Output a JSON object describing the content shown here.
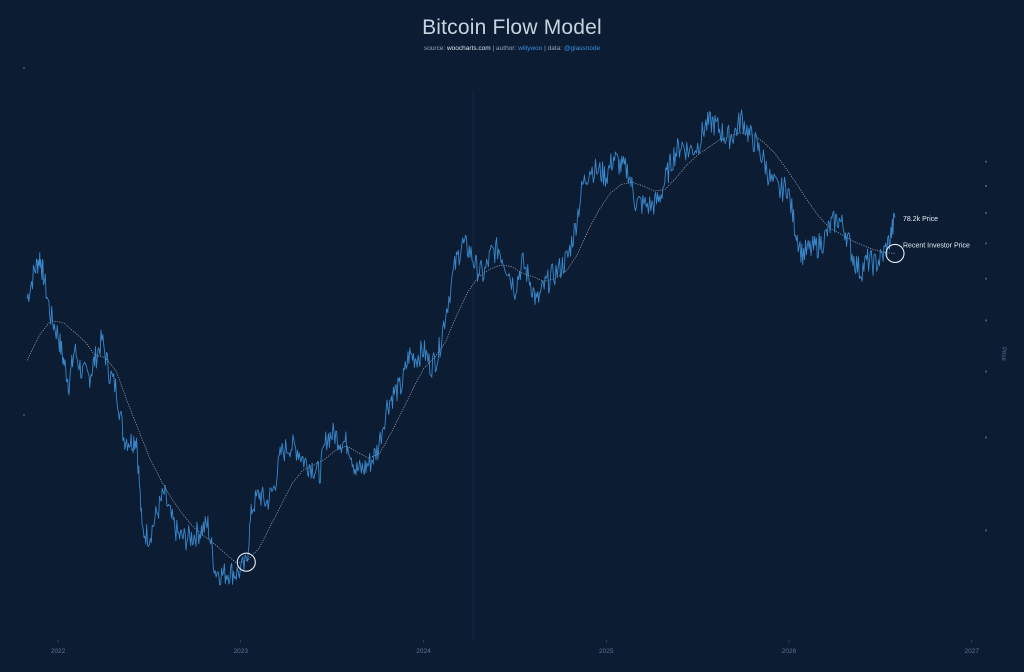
{
  "colors": {
    "background": "#0b1c33",
    "price_line": "#3a86c8",
    "investor_line": "#9fb0c4",
    "title": "#c9d3e0",
    "link": "#3f8ee0",
    "annotation": "#e6edf5",
    "axis_text": "#5a7594"
  },
  "header": {
    "title": "Bitcoin Flow Model",
    "source_label": "source:",
    "source_value": "woocharts.com",
    "sep1": "|",
    "author_label": "author:",
    "author_value": "willywoo",
    "sep2": "|",
    "data_label": "data:",
    "data_value": "@glassnode"
  },
  "chart_data": {
    "type": "line",
    "title": "Bitcoin Flow Model",
    "ylabel": "Price",
    "y_scale": "log",
    "x_ticks": [
      "2022",
      "2023",
      "2024",
      "2025",
      "2026",
      "2027"
    ],
    "x_range": [
      2021.83,
      2027.16
    ],
    "ylim": [
      14000,
      135000
    ],
    "grid": false,
    "series": [
      {
        "name": "Price",
        "values": [
          [
            2021.83,
            55000
          ],
          [
            2021.87,
            62000
          ],
          [
            2021.9,
            66000
          ],
          [
            2021.92,
            61000
          ],
          [
            2021.96,
            51000
          ],
          [
            2022.0,
            47000
          ],
          [
            2022.03,
            42000
          ],
          [
            2022.06,
            38000
          ],
          [
            2022.09,
            44000
          ],
          [
            2022.13,
            40000
          ],
          [
            2022.17,
            39000
          ],
          [
            2022.2,
            42000
          ],
          [
            2022.24,
            46000
          ],
          [
            2022.28,
            40000
          ],
          [
            2022.32,
            37000
          ],
          [
            2022.36,
            30000
          ],
          [
            2022.4,
            29500
          ],
          [
            2022.43,
            30000
          ],
          [
            2022.46,
            20000
          ],
          [
            2022.5,
            19500
          ],
          [
            2022.54,
            21500
          ],
          [
            2022.58,
            23500
          ],
          [
            2022.62,
            21000
          ],
          [
            2022.66,
            19500
          ],
          [
            2022.7,
            19300
          ],
          [
            2022.74,
            19500
          ],
          [
            2022.78,
            20000
          ],
          [
            2022.82,
            20500
          ],
          [
            2022.86,
            16800
          ],
          [
            2022.9,
            16500
          ],
          [
            2022.94,
            16700
          ],
          [
            2022.98,
            16600
          ],
          [
            2023.03,
            17200
          ],
          [
            2023.06,
            22000
          ],
          [
            2023.1,
            23500
          ],
          [
            2023.14,
            22500
          ],
          [
            2023.18,
            24000
          ],
          [
            2023.22,
            28000
          ],
          [
            2023.27,
            29000
          ],
          [
            2023.31,
            28500
          ],
          [
            2023.35,
            27000
          ],
          [
            2023.39,
            26500
          ],
          [
            2023.43,
            25500
          ],
          [
            2023.47,
            30000
          ],
          [
            2023.51,
            30500
          ],
          [
            2023.55,
            29500
          ],
          [
            2023.59,
            29200
          ],
          [
            2023.63,
            26000
          ],
          [
            2023.67,
            26100
          ],
          [
            2023.71,
            27000
          ],
          [
            2023.75,
            28500
          ],
          [
            2023.8,
            34500
          ],
          [
            2023.84,
            36500
          ],
          [
            2023.88,
            37500
          ],
          [
            2023.92,
            43000
          ],
          [
            2023.96,
            42500
          ],
          [
            2024.0,
            44000
          ],
          [
            2024.04,
            41000
          ],
          [
            2024.08,
            43000
          ],
          [
            2024.12,
            51500
          ],
          [
            2024.17,
            63000
          ],
          [
            2024.21,
            70000
          ],
          [
            2024.25,
            68000
          ],
          [
            2024.29,
            63000
          ],
          [
            2024.33,
            61000
          ],
          [
            2024.37,
            67000
          ],
          [
            2024.41,
            68500
          ],
          [
            2024.45,
            64000
          ],
          [
            2024.5,
            57500
          ],
          [
            2024.54,
            64500
          ],
          [
            2024.58,
            60000
          ],
          [
            2024.62,
            54000
          ],
          [
            2024.66,
            58000
          ],
          [
            2024.7,
            60500
          ],
          [
            2024.75,
            63000
          ],
          [
            2024.79,
            66000
          ],
          [
            2024.83,
            75000
          ],
          [
            2024.87,
            90000
          ],
          [
            2024.91,
            97000
          ],
          [
            2024.96,
            96000
          ],
          [
            2025.0,
            94000
          ],
          [
            2025.04,
            102000
          ],
          [
            2025.08,
            98000
          ],
          [
            2025.12,
            96000
          ],
          [
            2025.16,
            84000
          ],
          [
            2025.2,
            83000
          ],
          [
            2025.25,
            82500
          ],
          [
            2025.29,
            85000
          ],
          [
            2025.33,
            94000
          ],
          [
            2025.37,
            103000
          ],
          [
            2025.41,
            108000
          ],
          [
            2025.45,
            105000
          ],
          [
            2025.5,
            107000
          ],
          [
            2025.54,
            117000
          ],
          [
            2025.58,
            119000
          ],
          [
            2025.62,
            115000
          ],
          [
            2025.66,
            111000
          ],
          [
            2025.7,
            113000
          ],
          [
            2025.74,
            121000
          ],
          [
            2025.78,
            113000
          ],
          [
            2025.82,
            108000
          ],
          [
            2025.86,
            101000
          ],
          [
            2025.9,
            92000
          ],
          [
            2025.95,
            88000
          ],
          [
            2025.99,
            90000
          ],
          [
            2026.03,
            76000
          ],
          [
            2026.07,
            67000
          ],
          [
            2026.11,
            68000
          ],
          [
            2026.15,
            69000
          ],
          [
            2026.19,
            71000
          ],
          [
            2026.23,
            76000
          ],
          [
            2026.27,
            78000
          ],
          [
            2026.31,
            74000
          ],
          [
            2026.35,
            66000
          ],
          [
            2026.39,
            62000
          ],
          [
            2026.43,
            65000
          ],
          [
            2026.47,
            64000
          ],
          [
            2026.51,
            66000
          ],
          [
            2026.55,
            71000
          ],
          [
            2026.58,
            78200
          ]
        ]
      },
      {
        "name": "Recent Investor Price",
        "values": [
          [
            2021.83,
            42000
          ],
          [
            2021.9,
            47000
          ],
          [
            2021.96,
            50000
          ],
          [
            2022.03,
            49500
          ],
          [
            2022.09,
            47500
          ],
          [
            2022.15,
            45500
          ],
          [
            2022.2,
            43000
          ],
          [
            2022.26,
            42500
          ],
          [
            2022.32,
            40000
          ],
          [
            2022.38,
            35000
          ],
          [
            2022.44,
            31000
          ],
          [
            2022.5,
            27500
          ],
          [
            2022.56,
            25000
          ],
          [
            2022.62,
            23000
          ],
          [
            2022.68,
            21500
          ],
          [
            2022.74,
            20300
          ],
          [
            2022.8,
            19500
          ],
          [
            2022.86,
            18800
          ],
          [
            2022.92,
            18000
          ],
          [
            2022.98,
            17300
          ],
          [
            2023.04,
            17600
          ],
          [
            2023.1,
            18500
          ],
          [
            2023.16,
            20300
          ],
          [
            2023.22,
            22300
          ],
          [
            2023.28,
            24500
          ],
          [
            2023.34,
            26000
          ],
          [
            2023.4,
            26600
          ],
          [
            2023.46,
            27300
          ],
          [
            2023.52,
            28400
          ],
          [
            2023.58,
            28900
          ],
          [
            2023.64,
            28100
          ],
          [
            2023.7,
            27400
          ],
          [
            2023.76,
            28000
          ],
          [
            2023.82,
            30500
          ],
          [
            2023.88,
            33500
          ],
          [
            2023.94,
            37000
          ],
          [
            2024.0,
            40500
          ],
          [
            2024.06,
            42500
          ],
          [
            2024.12,
            45500
          ],
          [
            2024.18,
            51000
          ],
          [
            2024.24,
            56500
          ],
          [
            2024.3,
            60500
          ],
          [
            2024.36,
            62500
          ],
          [
            2024.42,
            63700
          ],
          [
            2024.48,
            63300
          ],
          [
            2024.54,
            61500
          ],
          [
            2024.6,
            60500
          ],
          [
            2024.66,
            59300
          ],
          [
            2024.72,
            60000
          ],
          [
            2024.78,
            62000
          ],
          [
            2024.84,
            66500
          ],
          [
            2024.9,
            74000
          ],
          [
            2024.96,
            81000
          ],
          [
            2025.02,
            87000
          ],
          [
            2025.08,
            90500
          ],
          [
            2025.14,
            91500
          ],
          [
            2025.2,
            90000
          ],
          [
            2025.26,
            88000
          ],
          [
            2025.32,
            88500
          ],
          [
            2025.38,
            93000
          ],
          [
            2025.44,
            98500
          ],
          [
            2025.5,
            103000
          ],
          [
            2025.56,
            106500
          ],
          [
            2025.62,
            110000
          ],
          [
            2025.68,
            112000
          ],
          [
            2025.74,
            113500
          ],
          [
            2025.8,
            112500
          ],
          [
            2025.86,
            109000
          ],
          [
            2025.92,
            104000
          ],
          [
            2025.98,
            97500
          ],
          [
            2026.04,
            91000
          ],
          [
            2026.1,
            84500
          ],
          [
            2026.16,
            79000
          ],
          [
            2026.22,
            75000
          ],
          [
            2026.28,
            73000
          ],
          [
            2026.34,
            71000
          ],
          [
            2026.4,
            69500
          ],
          [
            2026.46,
            68200
          ],
          [
            2026.52,
            67300
          ],
          [
            2026.58,
            67000
          ]
        ]
      }
    ],
    "annotations": [
      {
        "text": "78.2k Price",
        "x": 2026.58,
        "y": 78200
      },
      {
        "text": "Recent Investor Price",
        "x": 2026.58,
        "y": 67000
      }
    ],
    "highlights": [
      {
        "x": 2023.03,
        "y": 17400
      },
      {
        "x": 2026.58,
        "y": 67000
      }
    ]
  }
}
